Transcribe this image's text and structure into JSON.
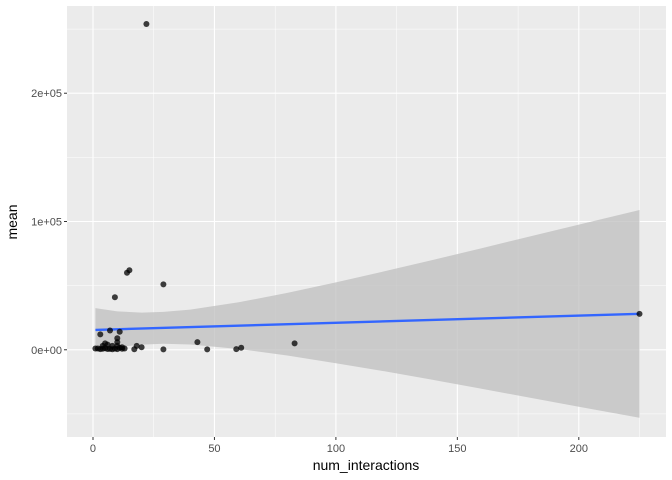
{
  "chart_data": {
    "type": "scatter",
    "xlabel": "num_interactions",
    "ylabel": "mean",
    "xlim": [
      -10.7,
      235.9
    ],
    "ylim": [
      -68000,
      268000
    ],
    "x_ticks": [
      0,
      50,
      100,
      150,
      200
    ],
    "x_tick_labels": [
      "0",
      "50",
      "100",
      "150",
      "200"
    ],
    "y_ticks": [
      0,
      100000,
      200000
    ],
    "y_tick_labels": [
      "0e+00",
      "1e+05",
      "2e+05"
    ],
    "grid": true,
    "background": "#ebebeb",
    "point_color": "#000000",
    "fit_color": "#3366ff",
    "band_color": "#bfbfbf",
    "points": [
      [
        22,
        254000
      ],
      [
        15,
        62000
      ],
      [
        14,
        60000
      ],
      [
        29,
        51000
      ],
      [
        9,
        41000
      ],
      [
        7,
        15000
      ],
      [
        3,
        12000
      ],
      [
        11,
        14000
      ],
      [
        10,
        9000
      ],
      [
        10,
        6000
      ],
      [
        5,
        5000
      ],
      [
        6,
        4000
      ],
      [
        8,
        3000
      ],
      [
        4,
        3000
      ],
      [
        10,
        3000
      ],
      [
        12,
        2000
      ],
      [
        18,
        3000
      ],
      [
        20,
        2000
      ],
      [
        43,
        6000
      ],
      [
        83,
        5000
      ],
      [
        61,
        1500
      ],
      [
        59,
        500
      ],
      [
        47,
        300
      ],
      [
        29,
        300
      ],
      [
        17,
        400
      ],
      [
        1,
        1000
      ],
      [
        2,
        1000
      ],
      [
        3,
        500
      ],
      [
        4,
        800
      ],
      [
        5,
        1200
      ],
      [
        6,
        600
      ],
      [
        7,
        700
      ],
      [
        8,
        400
      ],
      [
        9,
        900
      ],
      [
        10,
        500
      ],
      [
        11,
        1500
      ],
      [
        12,
        800
      ],
      [
        13,
        1000
      ],
      [
        225,
        28000
      ]
    ],
    "fit": {
      "x_start": 1,
      "y_start": 15500,
      "x_end": 225,
      "y_end": 28000
    },
    "band": [
      [
        1,
        15500,
        32500,
        -1500
      ],
      [
        10,
        16000,
        29900,
        2100
      ],
      [
        20,
        16500,
        29000,
        4000
      ],
      [
        29,
        17100,
        29500,
        4700
      ],
      [
        40,
        17700,
        31300,
        4100
      ],
      [
        60,
        18800,
        37000,
        600
      ],
      [
        80,
        19900,
        44300,
        -4500
      ],
      [
        100,
        21000,
        52500,
        -10500
      ],
      [
        120,
        22200,
        61200,
        -16800
      ],
      [
        140,
        23300,
        70100,
        -23500
      ],
      [
        160,
        24400,
        79200,
        -30400
      ],
      [
        180,
        25500,
        88400,
        -37400
      ],
      [
        200,
        26600,
        97600,
        -44400
      ],
      [
        225,
        28000,
        109000,
        -53000
      ]
    ]
  }
}
